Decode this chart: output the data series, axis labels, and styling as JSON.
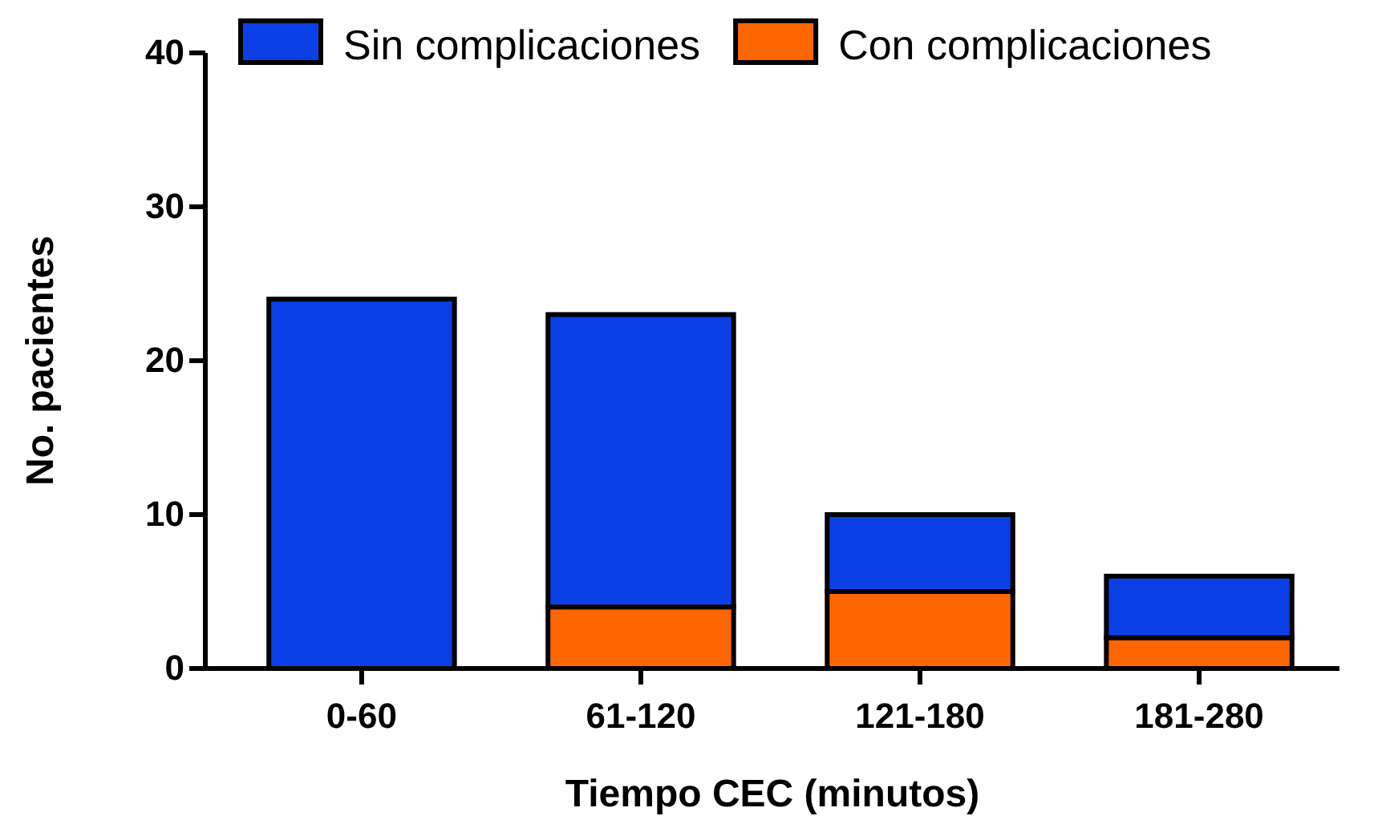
{
  "chart_data": {
    "type": "bar",
    "stacked": true,
    "xlabel": "Tiempo CEC (minutos)",
    "ylabel": "No. pacientes",
    "categories": [
      "0-60",
      "61-120",
      "121-180",
      "181-280"
    ],
    "series": [
      {
        "name": "Con complicaciones",
        "color": "#ff6600",
        "values": [
          0,
          4,
          5,
          2
        ]
      },
      {
        "name": "Sin complicaciones",
        "color": "#0a40e6",
        "values": [
          24,
          19,
          5,
          4
        ]
      }
    ],
    "ylim": [
      0,
      40
    ],
    "yticks": [
      0,
      10,
      20,
      30,
      40
    ],
    "grid": false,
    "legend": "top"
  }
}
